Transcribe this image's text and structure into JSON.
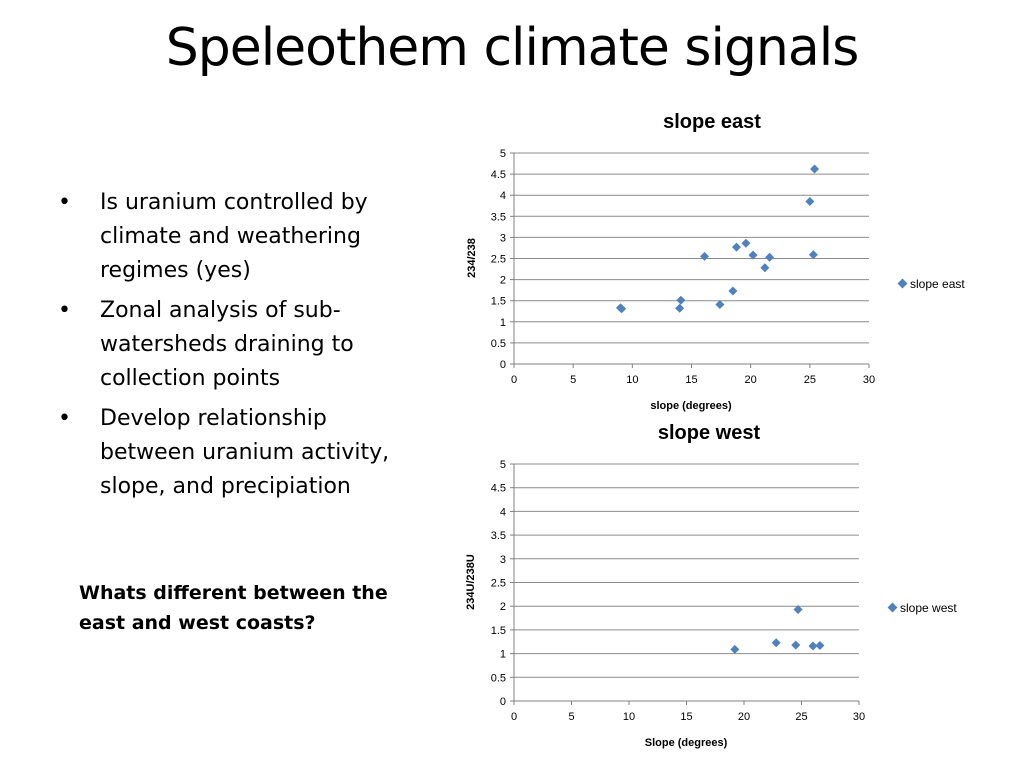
{
  "slide": {
    "title": "Speleothem climate signals",
    "bullets": [
      "Is uranium controlled by climate and weathering regimes (yes)",
      "Zonal analysis of sub-watersheds draining to collection points",
      "Develop relationship between uranium activity, slope, and precipiation"
    ],
    "question": "Whats different between the east and west coasts?"
  },
  "colors": {
    "marker": "#4F81BD",
    "grid": "#8c8c8c",
    "axis": "#808080"
  },
  "chart_data": [
    {
      "type": "scatter",
      "title": "slope east",
      "xlabel": "slope (degrees)",
      "ylabel": "234/238",
      "xlim": [
        0,
        30
      ],
      "ylim": [
        0,
        5
      ],
      "xticks": [
        "0",
        "5",
        "10",
        "15",
        "20",
        "25",
        "30"
      ],
      "yticks": [
        "0",
        "0.5",
        "1",
        "1.5",
        "2",
        "2.5",
        "3",
        "3.5",
        "4",
        "4.5",
        "5"
      ],
      "grid": true,
      "legend": "right",
      "series": [
        {
          "name": "slope east",
          "points": [
            [
              9.0,
              1.33
            ],
            [
              9.1,
              1.31
            ],
            [
              14.0,
              1.32
            ],
            [
              14.1,
              1.51
            ],
            [
              16.1,
              2.55
            ],
            [
              17.4,
              1.41
            ],
            [
              18.5,
              1.73
            ],
            [
              18.8,
              2.77
            ],
            [
              19.6,
              2.86
            ],
            [
              20.2,
              2.58
            ],
            [
              21.2,
              2.28
            ],
            [
              21.6,
              2.53
            ],
            [
              25.0,
              3.85
            ],
            [
              25.3,
              2.59
            ],
            [
              25.4,
              4.62
            ]
          ]
        }
      ]
    },
    {
      "type": "scatter",
      "title": "slope west",
      "xlabel": "Slope (degrees)",
      "ylabel": "234U/238U",
      "xlim": [
        0,
        30
      ],
      "ylim": [
        0,
        5
      ],
      "xticks": [
        "0",
        "5",
        "10",
        "15",
        "20",
        "25",
        "30"
      ],
      "yticks": [
        "0",
        "0.5",
        "1",
        "1.5",
        "2",
        "2.5",
        "3",
        "3.5",
        "4",
        "4.5",
        "5"
      ],
      "grid": true,
      "legend": "right",
      "series": [
        {
          "name": "slope west",
          "points": [
            [
              19.2,
              1.09
            ],
            [
              22.8,
              1.23
            ],
            [
              24.5,
              1.18
            ],
            [
              24.7,
              1.93
            ],
            [
              26.0,
              1.16
            ],
            [
              26.6,
              1.17
            ]
          ]
        }
      ]
    }
  ]
}
